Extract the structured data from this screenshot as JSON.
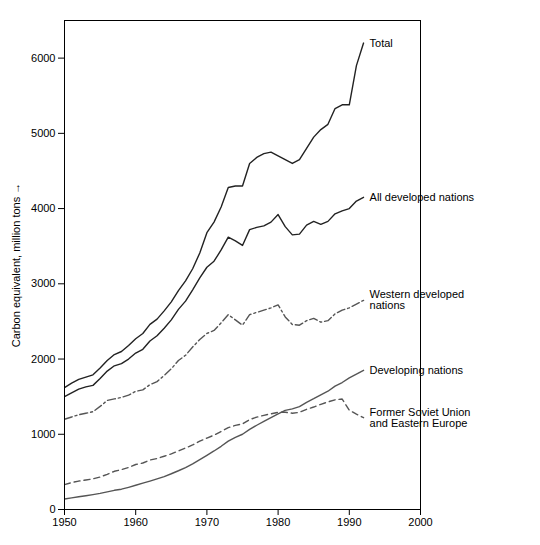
{
  "chart_data": {
    "type": "line",
    "ylabel": "Carbon equivalent, million tons",
    "xlim": [
      1950,
      2000
    ],
    "ylim": [
      0,
      6500
    ],
    "xticks": [
      1950,
      1960,
      1970,
      1980,
      1990,
      2000
    ],
    "yticks": [
      0,
      1000,
      2000,
      3000,
      4000,
      5000,
      6000
    ],
    "grid": false,
    "x": [
      1950,
      1951,
      1952,
      1953,
      1954,
      1955,
      1956,
      1957,
      1958,
      1959,
      1960,
      1961,
      1962,
      1963,
      1964,
      1965,
      1966,
      1967,
      1968,
      1969,
      1970,
      1971,
      1972,
      1973,
      1974,
      1975,
      1976,
      1977,
      1978,
      1979,
      1980,
      1981,
      1982,
      1983,
      1984,
      1985,
      1986,
      1987,
      1988,
      1989,
      1990,
      1991,
      1992
    ],
    "series": [
      {
        "name": "Total",
        "color": "#222222",
        "line_style": "solid",
        "values": [
          1620,
          1680,
          1730,
          1760,
          1790,
          1880,
          1980,
          2060,
          2100,
          2180,
          2270,
          2340,
          2460,
          2530,
          2640,
          2760,
          2910,
          3040,
          3200,
          3410,
          3680,
          3820,
          4020,
          4280,
          4300,
          4300,
          4600,
          4680,
          4730,
          4750,
          4700,
          4650,
          4600,
          4650,
          4800,
          4950,
          5050,
          5120,
          5330,
          5380,
          5380,
          5900,
          6200
        ]
      },
      {
        "name": "All developed nations",
        "color": "#222222",
        "line_style": "solid",
        "values": [
          1500,
          1550,
          1600,
          1630,
          1650,
          1740,
          1840,
          1910,
          1940,
          2000,
          2080,
          2130,
          2240,
          2310,
          2410,
          2520,
          2660,
          2770,
          2920,
          3080,
          3220,
          3300,
          3450,
          3620,
          3570,
          3510,
          3720,
          3750,
          3770,
          3820,
          3920,
          3760,
          3650,
          3660,
          3780,
          3830,
          3790,
          3830,
          3930,
          3970,
          4000,
          4100,
          4150
        ]
      },
      {
        "name": "Western developed\nnations",
        "color": "#555555",
        "line_style": "dashdot",
        "values": [
          1200,
          1230,
          1260,
          1280,
          1300,
          1370,
          1450,
          1470,
          1490,
          1520,
          1570,
          1590,
          1660,
          1700,
          1780,
          1870,
          1980,
          2050,
          2160,
          2260,
          2340,
          2380,
          2480,
          2590,
          2520,
          2450,
          2590,
          2620,
          2650,
          2680,
          2720,
          2560,
          2460,
          2450,
          2510,
          2540,
          2490,
          2510,
          2600,
          2650,
          2680,
          2730,
          2780
        ]
      },
      {
        "name": "Developing nations",
        "color": "#555555",
        "line_style": "solid",
        "values": [
          140,
          155,
          170,
          183,
          198,
          215,
          235,
          255,
          270,
          295,
          322,
          350,
          378,
          408,
          438,
          475,
          515,
          558,
          606,
          662,
          720,
          778,
          840,
          908,
          960,
          1000,
          1065,
          1120,
          1172,
          1222,
          1270,
          1318,
          1338,
          1367,
          1425,
          1473,
          1525,
          1572,
          1640,
          1688,
          1750,
          1800,
          1850
        ]
      },
      {
        "name": "Former Soviet Union\nand Eastern Europe",
        "color": "#555555",
        "line_style": "dashed",
        "values": [
          330,
          358,
          378,
          392,
          408,
          432,
          468,
          508,
          530,
          558,
          598,
          618,
          658,
          678,
          708,
          740,
          778,
          818,
          858,
          908,
          950,
          988,
          1038,
          1088,
          1118,
          1138,
          1195,
          1228,
          1252,
          1272,
          1292,
          1292,
          1280,
          1292,
          1332,
          1362,
          1398,
          1430,
          1458,
          1468,
          1320,
          1268,
          1220
        ]
      }
    ]
  }
}
